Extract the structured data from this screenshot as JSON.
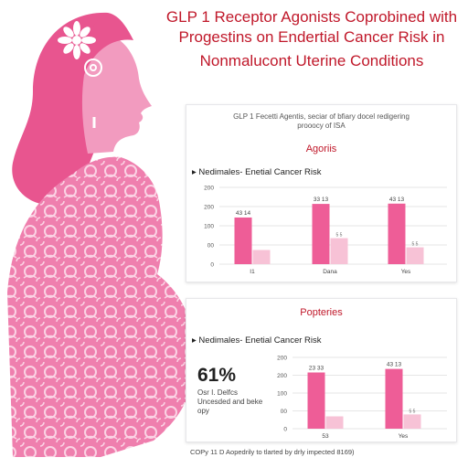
{
  "title": {
    "line1": "GLP 1 Receptor Agonists Coprobined with",
    "line2": "Progestins on Endertial Cancer Risk in",
    "line3": "Nonmalucont Uterine Conditions"
  },
  "colors": {
    "bar_primary": "#ee5d97",
    "bar_secondary": "#f7c2d6",
    "title": "#c0182a"
  },
  "illustration": {
    "figure": "pregnant-woman-silhouette",
    "ornament": "flower-icon"
  },
  "panel1": {
    "subtitle_line1": "GLP 1 Fecetti Agentis, seciar of bfiary docel redigering",
    "subtitle_line2": "prooocy of ISA",
    "section": "Agoriis",
    "series_title": "Nedimales- Enetial Cancer Risk"
  },
  "panel2": {
    "section": "Popteries",
    "series_title": "Nedimales- Enetial Cancer Risk",
    "stat": "61%",
    "stat_note": "Osr I. Delfcs Uncesded and beke opy"
  },
  "chart_data": [
    {
      "type": "bar",
      "categories": [
        "I1",
        "Dana",
        "Yes"
      ],
      "series": [
        {
          "values": [
            158,
            204,
            205
          ]
        },
        {
          "values": [
            48,
            88,
            57
          ]
        }
      ],
      "data_labels": [
        "43 14",
        "33 13",
        "43 13"
      ],
      "secondary_labels": [
        "",
        "5 5",
        "5 5"
      ],
      "yticks": [
        "0",
        "00",
        "100",
        "200",
        "200"
      ],
      "ylim": [
        0,
        260
      ]
    },
    {
      "type": "bar",
      "categories": [
        "53",
        "Yes"
      ],
      "series": [
        {
          "values": [
            205,
            218
          ]
        },
        {
          "values": [
            45,
            52
          ]
        }
      ],
      "data_labels": [
        "23 33",
        "43 13"
      ],
      "secondary_labels": [
        "",
        "5 5"
      ],
      "yticks": [
        "0",
        "00",
        "100",
        "200",
        "200"
      ],
      "ylim": [
        0,
        260
      ]
    }
  ],
  "footer": "COPy 11 D Aopedrily to tlarted by drly impected 8169)"
}
